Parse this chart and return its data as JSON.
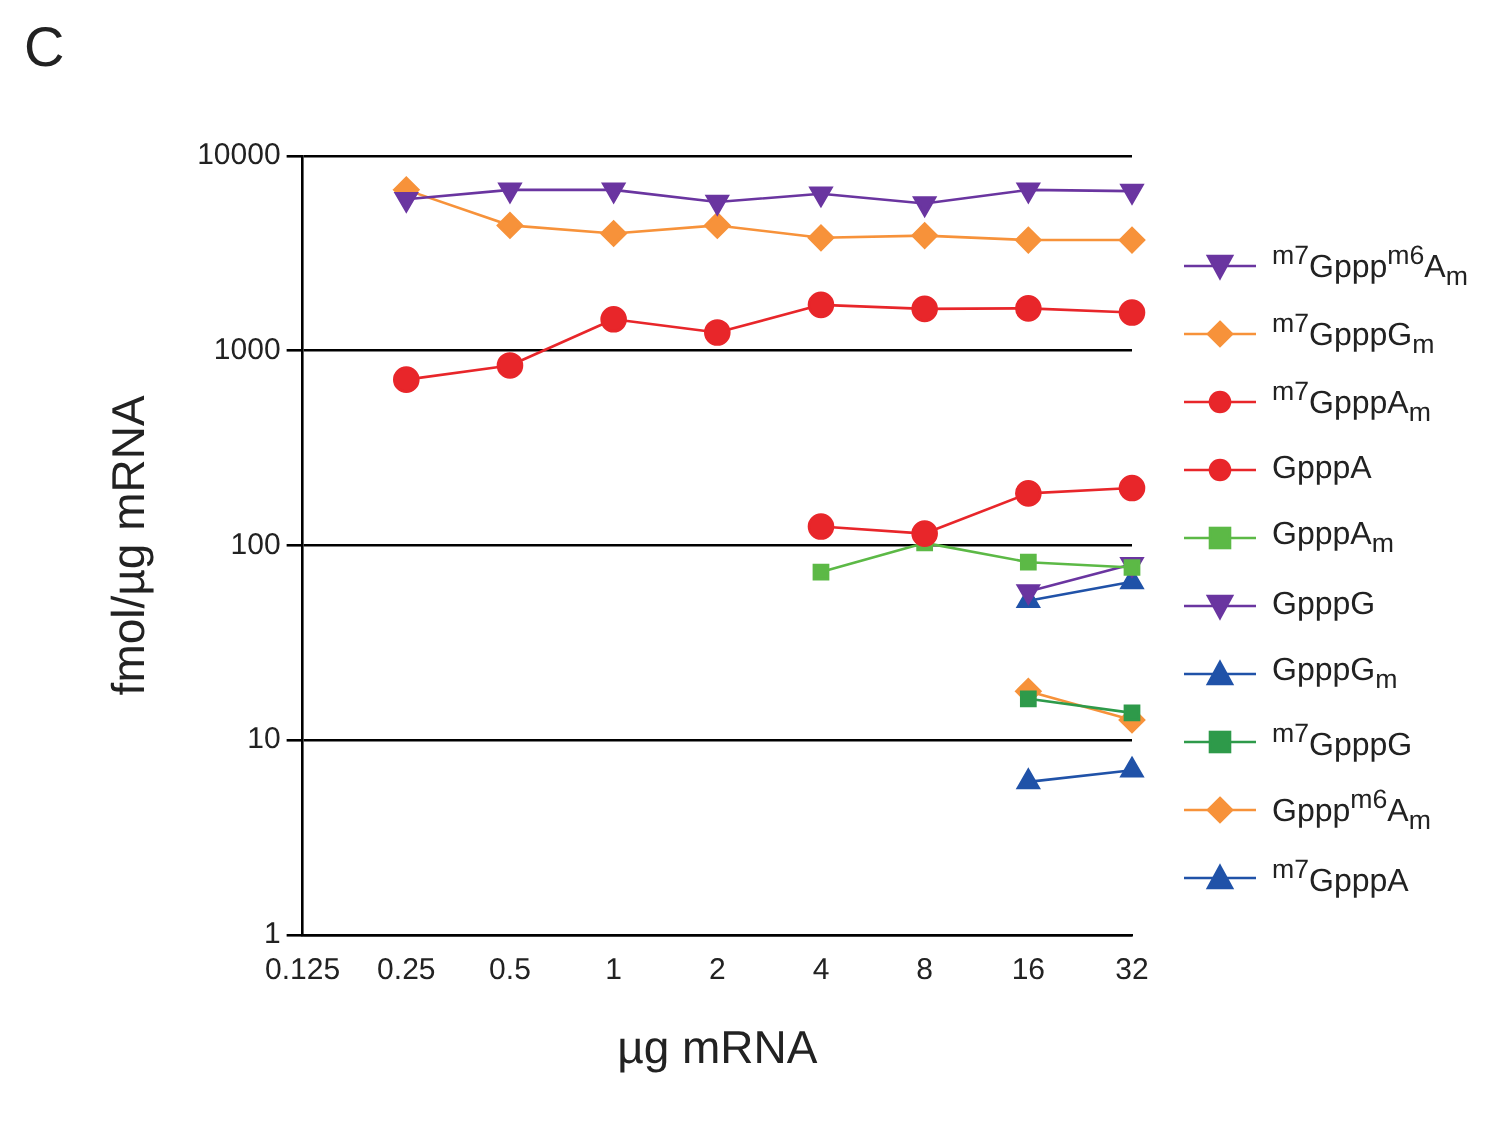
{
  "chart_data": {
    "type": "line",
    "xlabel": "µg mRNA",
    "ylabel": "fmol/µg mRNA",
    "annotations": [
      "C"
    ],
    "log": "xy",
    "grid": "y",
    "legend": "right",
    "line_style": "solid",
    "xlim": [
      0.125,
      32
    ],
    "xticks": [
      0.125,
      0.25,
      0.5,
      1,
      2,
      4,
      8,
      16,
      32
    ],
    "ylim": [
      1,
      10000
    ],
    "yticks": [
      1,
      10,
      100,
      1000,
      10000
    ],
    "series": [
      {
        "name": "$^{m7}$Gppp$^{m6}$A$_{m}$",
        "color": "#6a35a0",
        "marker": "triangle-down",
        "x": [
          0.25,
          0.5,
          1,
          2,
          4,
          8,
          16,
          32
        ],
        "values": [
          6000,
          6700,
          6700,
          5800,
          6400,
          5700,
          6700,
          6600
        ]
      },
      {
        "name": "$^{m7}$GpppG$_{m}$",
        "color": "#f7923a",
        "marker": "diamond",
        "x": [
          0.25,
          0.5,
          1,
          2,
          4,
          8,
          16,
          32
        ],
        "values": [
          6700,
          4400,
          4000,
          4400,
          3800,
          3900,
          3700,
          3700
        ]
      },
      {
        "name": "$^{m7}$GpppA$_{m}$",
        "color": "#e8262a",
        "marker": "circle",
        "x": [
          0.25,
          0.5,
          1,
          2,
          4,
          8,
          16,
          32
        ],
        "values": [
          710,
          840,
          1450,
          1240,
          1720,
          1640,
          1650,
          1570
        ]
      },
      {
        "name": "GpppA",
        "color": "#e8262a",
        "marker": "circle",
        "x": [
          4,
          8,
          16,
          32
        ],
        "values": [
          125,
          115,
          185,
          197
        ]
      },
      {
        "name": "GpppA$_{m}$",
        "color": "#5cb946",
        "marker": "square",
        "x": [
          4,
          8,
          16,
          32
        ],
        "values": [
          73,
          103,
          82,
          77
        ]
      },
      {
        "name": "GpppG",
        "color": "#6a35a0",
        "marker": "triangle-down",
        "x": [
          16,
          32
        ],
        "values": [
          58,
          80
        ]
      },
      {
        "name": "GpppG$_{m}$",
        "color": "#2052a8",
        "marker": "triangle",
        "x": [
          16,
          32
        ],
        "values": [
          52,
          65
        ]
      },
      {
        "name": "$^{m7}$GpppG",
        "color": "#2e9a4a",
        "marker": "square",
        "x": [
          16,
          32
        ],
        "values": [
          16.3,
          13.8
        ]
      },
      {
        "name": "Gppp$^{m6}$A$_{m}$",
        "color": "#f7923a",
        "marker": "diamond",
        "x": [
          16,
          32
        ],
        "values": [
          17.8,
          12.7
        ]
      },
      {
        "name": "$^{m7}$GpppA",
        "color": "#2052a8",
        "marker": "triangle",
        "x": [
          16,
          32
        ],
        "values": [
          6.1,
          7.0
        ]
      }
    ]
  }
}
